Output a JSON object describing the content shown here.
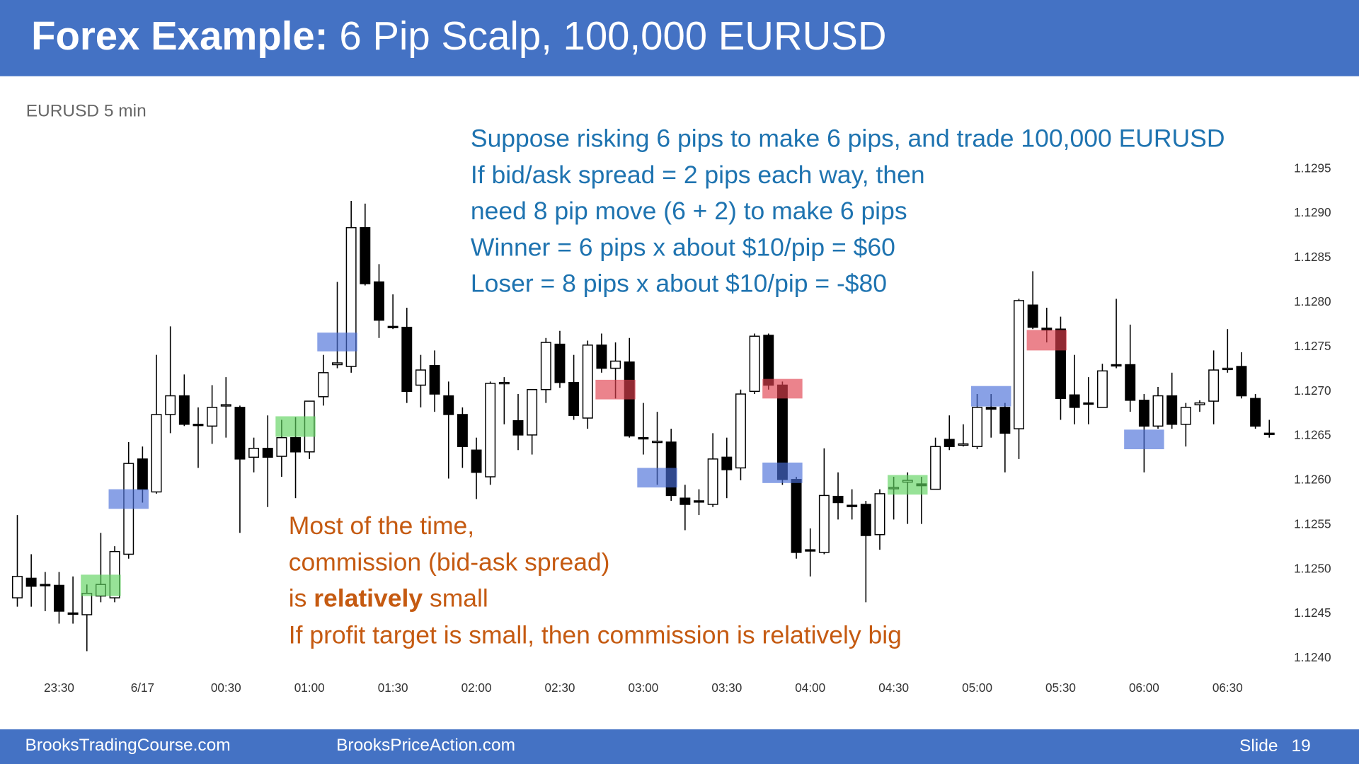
{
  "slide": {
    "title_bold": "Forex Example:",
    "title": "6 Pip Scalp, 100,000 EURUSD",
    "footer_left": "BrooksTradingCourse.com",
    "footer_middle": "BrooksPriceAction.com",
    "slide_label": "Slide",
    "slide_number": 19,
    "note_blue": [
      "Suppose risking 6 pips to make 6 pips, and trade 100,000 EURUSD",
      "If bid/ask spread = 2 pips each way, then",
      "need 8 pip move (6 + 2)  to make 6 pips",
      "Winner = 6 pips x about $10/pip = $60",
      "Loser = 8 pips x about $10/pip = -$80"
    ],
    "note_orange": {
      "line1": "Most of the time,",
      "line2": "commission (bid-ask spread)",
      "line3_start": "is",
      "line3_bold": "relatively",
      "line3_end": "small",
      "line4": "If profit target is small, then commission is relatively big"
    }
  },
  "chart_data": {
    "type": "candlestick",
    "subtitle": "EURUSD 5 min",
    "categories": [
      null,
      null,
      null,
      "23:30",
      null,
      null,
      null,
      null,
      null,
      "6/17",
      null,
      null,
      null,
      null,
      null,
      "00:30",
      null,
      null,
      null,
      null,
      null,
      "01:00",
      null,
      null,
      null,
      null,
      null,
      "01:30",
      null,
      null,
      null,
      null,
      null,
      "02:00",
      null,
      null,
      null,
      null,
      null,
      "02:30",
      null,
      null,
      null,
      null,
      null,
      "03:00",
      null,
      null,
      null,
      null,
      null,
      "03:30",
      null,
      null,
      null,
      null,
      null,
      "04:00",
      null,
      null,
      null,
      null,
      null,
      "04:30",
      null,
      null,
      null,
      null,
      null,
      "05:00",
      null,
      null,
      null,
      null,
      null,
      "05:30",
      null,
      null,
      null,
      null,
      null,
      "06:00",
      null,
      null,
      null,
      null,
      null,
      "06:30",
      null,
      null,
      null
    ],
    "open": [
      1.12468,
      1.1249,
      1.12483,
      1.12482,
      1.12451,
      1.12449,
      1.1247,
      1.12468,
      1.12517,
      1.12624,
      1.12587,
      1.12674,
      1.12695,
      1.12663,
      1.12661,
      1.12684,
      1.12682,
      1.12626,
      1.12636,
      1.12627,
      1.12648,
      1.12632,
      1.12694,
      1.1273,
      1.12728,
      1.12884,
      1.12823,
      1.12773,
      1.12772,
      1.12707,
      1.12729,
      1.12695,
      1.12674,
      1.12634,
      1.12604,
      1.12709,
      1.12667,
      1.12651,
      1.12702,
      1.12753,
      1.1271,
      1.1267,
      1.12752,
      1.12726,
      1.12733,
      1.12648,
      1.12643,
      1.12643,
      1.1258,
      1.12577,
      1.12573,
      1.12626,
      1.12614,
      1.127,
      1.12763,
      1.12707,
      1.12601,
      1.12522,
      1.12519,
      1.12582,
      1.12572,
      1.12573,
      1.12539,
      1.12591,
      1.12598,
      1.12596,
      1.1259,
      1.12646,
      1.1264,
      1.12638,
      1.12682,
      1.12682,
      1.12658,
      1.12797,
      1.12771,
      1.1277,
      1.12696,
      1.12687,
      1.12682,
      1.1273,
      1.1273,
      1.1269,
      1.12661,
      1.12695,
      1.12663,
      1.12685,
      1.12689,
      1.12725,
      1.12728,
      1.12692,
      1.12653
    ],
    "high": [
      1.12561,
      1.12517,
      1.12497,
      1.12497,
      1.12492,
      1.12483,
      1.12541,
      1.12526,
      1.12643,
      1.12638,
      1.12741,
      1.12773,
      1.12719,
      1.12682,
      1.12707,
      1.12716,
      1.12684,
      1.12648,
      1.12673,
      1.12668,
      1.12671,
      1.12689,
      1.12741,
      1.12823,
      1.12914,
      1.12911,
      1.12843,
      1.12809,
      1.12794,
      1.12741,
      1.12746,
      1.12711,
      1.12682,
      1.12648,
      1.12711,
      1.12716,
      1.12697,
      1.12702,
      1.1276,
      1.12768,
      1.12741,
      1.12757,
      1.12765,
      1.12755,
      1.1276,
      1.12687,
      1.12677,
      1.12658,
      1.12595,
      1.1259,
      1.12653,
      1.12648,
      1.12702,
      1.12765,
      1.12765,
      1.12711,
      1.12604,
      1.12546,
      1.12636,
      1.12609,
      1.1259,
      1.12577,
      1.1259,
      1.12604,
      1.12609,
      1.12604,
      1.12648,
      1.12673,
      1.12663,
      1.12697,
      1.12697,
      1.12687,
      1.12804,
      1.12835,
      1.12794,
      1.12784,
      1.12741,
      1.12716,
      1.12731,
      1.12804,
      1.12775,
      1.12697,
      1.12705,
      1.12721,
      1.12687,
      1.1269,
      1.12746,
      1.1277,
      1.12744,
      1.12697,
      1.12668
    ],
    "low": [
      1.12458,
      1.12458,
      1.12453,
      1.12439,
      1.12439,
      1.12408,
      1.12463,
      1.12463,
      1.12512,
      1.12575,
      1.12585,
      1.12653,
      1.12661,
      1.12614,
      1.12641,
      1.12648,
      1.12541,
      1.12609,
      1.1257,
      1.12604,
      1.1258,
      1.12624,
      1.12684,
      1.12726,
      1.12721,
      1.12819,
      1.1276,
      1.1277,
      1.12687,
      1.12682,
      1.12677,
      1.12602,
      1.12614,
      1.12579,
      1.12595,
      1.12663,
      1.12634,
      1.12629,
      1.12687,
      1.12704,
      1.12668,
      1.12658,
      1.12721,
      1.12692,
      1.12648,
      1.12629,
      1.12595,
      1.12577,
      1.12544,
      1.12561,
      1.1257,
      1.1258,
      1.126,
      1.12697,
      1.12702,
      1.12595,
      1.12512,
      1.12492,
      1.12517,
      1.12556,
      1.12556,
      1.12463,
      1.12522,
      1.12556,
      1.12551,
      1.12551,
      1.1259,
      1.12634,
      1.12638,
      1.12635,
      1.12648,
      1.12609,
      1.12624,
      1.1277,
      1.12755,
      1.12668,
      1.12663,
      1.12663,
      1.12682,
      1.12726,
      1.12677,
      1.12609,
      1.12658,
      1.12658,
      1.12638,
      1.12677,
      1.12663,
      1.12721,
      1.12692,
      1.12658,
      1.12648
    ],
    "close": [
      1.12492,
      1.12481,
      1.12482,
      1.12453,
      1.1245,
      1.12473,
      1.12483,
      1.1252,
      1.12619,
      1.1259,
      1.12674,
      1.12695,
      1.12663,
      1.12662,
      1.12682,
      1.12685,
      1.12624,
      1.12636,
      1.12626,
      1.12648,
      1.12632,
      1.12689,
      1.12721,
      1.12732,
      1.12884,
      1.12821,
      1.1278,
      1.12772,
      1.127,
      1.12724,
      1.12697,
      1.12674,
      1.12638,
      1.12609,
      1.12709,
      1.1271,
      1.12651,
      1.12702,
      1.12755,
      1.1271,
      1.12673,
      1.12752,
      1.12726,
      1.12734,
      1.1265,
      1.12647,
      1.12644,
      1.12583,
      1.12573,
      1.12576,
      1.12624,
      1.12612,
      1.12697,
      1.12762,
      1.12707,
      1.12601,
      1.12519,
      1.12521,
      1.12583,
      1.12575,
      1.12571,
      1.12538,
      1.12585,
      1.12592,
      1.126,
      1.12594,
      1.12638,
      1.12638,
      1.12641,
      1.12682,
      1.1268,
      1.12653,
      1.12802,
      1.12772,
      1.12769,
      1.12692,
      1.12682,
      1.12686,
      1.12723,
      1.12729,
      1.1269,
      1.12661,
      1.12695,
      1.12663,
      1.12682,
      1.12687,
      1.12724,
      1.12726,
      1.12695,
      1.12661,
      1.12652
    ],
    "up_color": "#ffffff",
    "down_color": "#000000",
    "wick_color": "#000000",
    "highlights": [
      {
        "color": "#5fd35f",
        "from": 5,
        "to": 7,
        "low": 1.1247,
        "high": 1.12494
      },
      {
        "color": "#4a6fd8",
        "from": 7,
        "to": 9,
        "low": 1.12568,
        "high": 1.1259
      },
      {
        "color": "#5fd35f",
        "from": 19,
        "to": 21,
        "low": 1.12649,
        "high": 1.12672
      },
      {
        "color": "#4a6fd8",
        "from": 22,
        "to": 24,
        "low": 1.12745,
        "high": 1.12766
      },
      {
        "color": "#e0404e",
        "from": 42,
        "to": 44,
        "low": 1.12691,
        "high": 1.12713
      },
      {
        "color": "#4a6fd8",
        "from": 45,
        "to": 47,
        "low": 1.12592,
        "high": 1.12614
      },
      {
        "color": "#e0404e",
        "from": 54,
        "to": 56,
        "low": 1.12692,
        "high": 1.12714
      },
      {
        "color": "#4a6fd8",
        "from": 54,
        "to": 56,
        "low": 1.12597,
        "high": 1.1262
      },
      {
        "color": "#5fd35f",
        "from": 63,
        "to": 65,
        "low": 1.12584,
        "high": 1.12606
      },
      {
        "color": "#4a6fd8",
        "from": 69,
        "to": 71,
        "low": 1.12683,
        "high": 1.12706
      },
      {
        "color": "#e0404e",
        "from": 73,
        "to": 75,
        "low": 1.12746,
        "high": 1.12769
      },
      {
        "color": "#4a6fd8",
        "from": 80,
        "to": 82,
        "low": 1.12635,
        "high": 1.12657
      }
    ],
    "ylim": [
      1.124,
      1.1295
    ],
    "yticks": [
      1.1295,
      {
        "value": 1.129,
        "label": "1.1290"
      },
      1.1285,
      {
        "value": 1.128,
        "label": "1.1280"
      },
      1.1275,
      {
        "value": 1.127,
        "label": "1.1270"
      },
      1.1265,
      {
        "value": 1.126,
        "label": "1.1260"
      },
      1.1255,
      {
        "value": 1.125,
        "label": "1.1250"
      },
      1.1245,
      {
        "value": 1.124,
        "label": "1.1240"
      }
    ],
    "grid": false
  }
}
